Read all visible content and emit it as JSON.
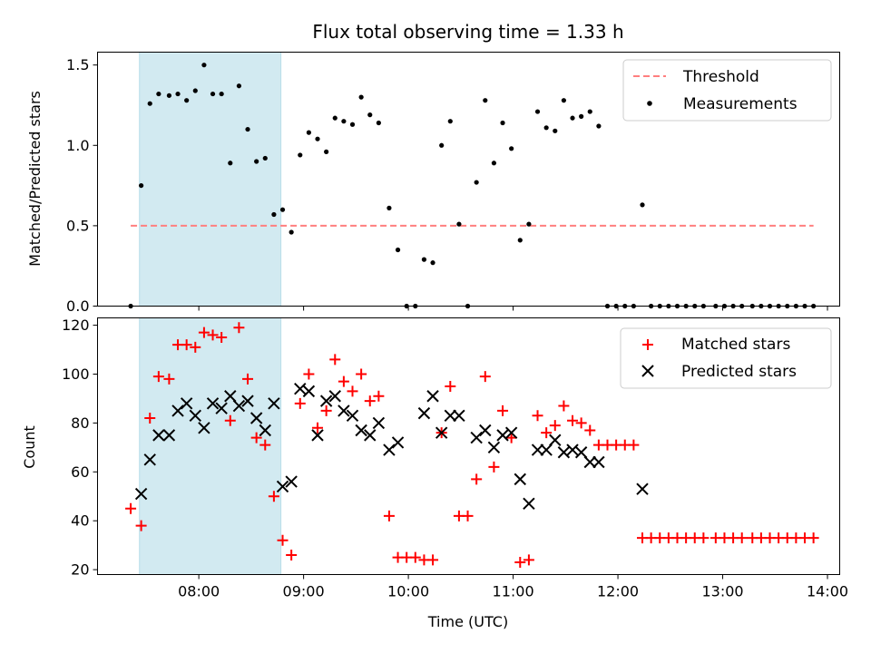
{
  "colors": {
    "shade": "#add8e6",
    "threshold": "#ff7f7f",
    "measurements": "#000000",
    "matched": "#ff0000",
    "predicted": "#000000"
  },
  "chart_data": [
    {
      "type": "scatter",
      "title": "Flux total observing time = 1.33 h",
      "xlabel": "",
      "ylabel": "Matched/Predicted stars",
      "xlim": [
        "07:02",
        "14:07"
      ],
      "ylim": [
        0,
        1.58
      ],
      "yticks": [
        0.0,
        0.5,
        1.0,
        1.5
      ],
      "ytick_labels": [
        "0.0",
        "0.5",
        "1.0",
        "1.5"
      ],
      "shaded_span": [
        "07:26",
        "08:47"
      ],
      "threshold": {
        "name": "Threshold",
        "value": 0.5,
        "x_range": [
          "07:21",
          "13:52"
        ],
        "style": "dashed"
      },
      "legend": {
        "position": "top-right",
        "entries": [
          "Threshold",
          "Measurements"
        ]
      },
      "series": [
        {
          "name": "Measurements",
          "points": [
            [
              "07:21",
              0.0
            ],
            [
              "07:27",
              0.75
            ],
            [
              "07:32",
              1.26
            ],
            [
              "07:37",
              1.32
            ],
            [
              "07:43",
              1.31
            ],
            [
              "07:48",
              1.32
            ],
            [
              "07:53",
              1.28
            ],
            [
              "07:58",
              1.34
            ],
            [
              "08:03",
              1.5
            ],
            [
              "08:08",
              1.32
            ],
            [
              "08:13",
              1.32
            ],
            [
              "08:18",
              0.89
            ],
            [
              "08:23",
              1.37
            ],
            [
              "08:28",
              1.1
            ],
            [
              "08:33",
              0.9
            ],
            [
              "08:38",
              0.92
            ],
            [
              "08:43",
              0.57
            ],
            [
              "08:48",
              0.6
            ],
            [
              "08:53",
              0.46
            ],
            [
              "08:58",
              0.94
            ],
            [
              "09:03",
              1.08
            ],
            [
              "09:08",
              1.04
            ],
            [
              "09:13",
              0.96
            ],
            [
              "09:18",
              1.17
            ],
            [
              "09:23",
              1.15
            ],
            [
              "09:28",
              1.13
            ],
            [
              "09:33",
              1.3
            ],
            [
              "09:38",
              1.19
            ],
            [
              "09:43",
              1.14
            ],
            [
              "09:49",
              0.61
            ],
            [
              "09:54",
              0.35
            ],
            [
              "09:59",
              0.0
            ],
            [
              "10:04",
              0.0
            ],
            [
              "10:09",
              0.29
            ],
            [
              "10:14",
              0.27
            ],
            [
              "10:19",
              1.0
            ],
            [
              "10:24",
              1.15
            ],
            [
              "10:29",
              0.51
            ],
            [
              "10:34",
              0.0
            ],
            [
              "10:39",
              0.77
            ],
            [
              "10:44",
              1.28
            ],
            [
              "10:49",
              0.89
            ],
            [
              "10:54",
              1.14
            ],
            [
              "10:59",
              0.98
            ],
            [
              "11:04",
              0.41
            ],
            [
              "11:09",
              0.51
            ],
            [
              "11:14",
              1.21
            ],
            [
              "11:19",
              1.11
            ],
            [
              "11:24",
              1.09
            ],
            [
              "11:29",
              1.28
            ],
            [
              "11:34",
              1.17
            ],
            [
              "11:39",
              1.18
            ],
            [
              "11:44",
              1.21
            ],
            [
              "11:49",
              1.12
            ],
            [
              "11:54",
              0.0
            ],
            [
              "11:59",
              0.0
            ],
            [
              "12:04",
              0.0
            ],
            [
              "12:09",
              0.0
            ],
            [
              "12:14",
              0.63
            ],
            [
              "12:19",
              0.0
            ],
            [
              "12:24",
              0.0
            ],
            [
              "12:29",
              0.0
            ],
            [
              "12:34",
              0.0
            ],
            [
              "12:39",
              0.0
            ],
            [
              "12:44",
              0.0
            ],
            [
              "12:49",
              0.0
            ],
            [
              "12:56",
              0.0
            ],
            [
              "13:01",
              0.0
            ],
            [
              "13:06",
              0.0
            ],
            [
              "13:11",
              0.0
            ],
            [
              "13:17",
              0.0
            ],
            [
              "13:22",
              0.0
            ],
            [
              "13:27",
              0.0
            ],
            [
              "13:32",
              0.0
            ],
            [
              "13:37",
              0.0
            ],
            [
              "13:42",
              0.0
            ],
            [
              "13:47",
              0.0
            ],
            [
              "13:52",
              0.0
            ]
          ]
        }
      ]
    },
    {
      "type": "scatter",
      "title": "",
      "xlabel": "Time (UTC)",
      "ylabel": "Count",
      "xlim": [
        "07:02",
        "14:07"
      ],
      "ylim": [
        18,
        123
      ],
      "yticks": [
        20,
        40,
        60,
        80,
        100,
        120
      ],
      "ytick_labels": [
        "20",
        "40",
        "60",
        "80",
        "100",
        "120"
      ],
      "xticks": [
        "08:00",
        "09:00",
        "10:00",
        "11:00",
        "12:00",
        "13:00",
        "14:00"
      ],
      "xtick_labels": [
        "08:00",
        "09:00",
        "10:00",
        "11:00",
        "12:00",
        "13:00",
        "14:00"
      ],
      "shaded_span": [
        "07:26",
        "08:47"
      ],
      "legend": {
        "position": "top-right",
        "entries": [
          "Matched stars",
          "Predicted stars"
        ]
      },
      "series": [
        {
          "name": "Matched stars",
          "marker": "+",
          "points": [
            [
              "07:21",
              45
            ],
            [
              "07:27",
              38
            ],
            [
              "07:32",
              82
            ],
            [
              "07:37",
              99
            ],
            [
              "07:43",
              98
            ],
            [
              "07:48",
              112
            ],
            [
              "07:53",
              112
            ],
            [
              "07:58",
              111
            ],
            [
              "08:03",
              117
            ],
            [
              "08:08",
              116
            ],
            [
              "08:13",
              115
            ],
            [
              "08:18",
              81
            ],
            [
              "08:23",
              119
            ],
            [
              "08:28",
              98
            ],
            [
              "08:33",
              74
            ],
            [
              "08:38",
              71
            ],
            [
              "08:43",
              50
            ],
            [
              "08:48",
              32
            ],
            [
              "08:53",
              26
            ],
            [
              "08:58",
              88
            ],
            [
              "09:03",
              100
            ],
            [
              "09:08",
              78
            ],
            [
              "09:13",
              85
            ],
            [
              "09:18",
              106
            ],
            [
              "09:23",
              97
            ],
            [
              "09:28",
              93
            ],
            [
              "09:33",
              100
            ],
            [
              "09:38",
              89
            ],
            [
              "09:43",
              91
            ],
            [
              "09:49",
              42
            ],
            [
              "09:54",
              25
            ],
            [
              "09:59",
              25
            ],
            [
              "10:04",
              25
            ],
            [
              "10:09",
              24
            ],
            [
              "10:14",
              24
            ],
            [
              "10:19",
              76
            ],
            [
              "10:24",
              95
            ],
            [
              "10:29",
              42
            ],
            [
              "10:34",
              42
            ],
            [
              "10:39",
              57
            ],
            [
              "10:44",
              99
            ],
            [
              "10:49",
              62
            ],
            [
              "10:54",
              85
            ],
            [
              "10:59",
              74
            ],
            [
              "11:04",
              23
            ],
            [
              "11:09",
              24
            ],
            [
              "11:14",
              83
            ],
            [
              "11:19",
              76
            ],
            [
              "11:24",
              79
            ],
            [
              "11:29",
              87
            ],
            [
              "11:34",
              81
            ],
            [
              "11:39",
              80
            ],
            [
              "11:44",
              77
            ],
            [
              "11:49",
              71
            ],
            [
              "11:54",
              71
            ],
            [
              "11:59",
              71
            ],
            [
              "12:04",
              71
            ],
            [
              "12:09",
              71
            ],
            [
              "12:14",
              33
            ],
            [
              "12:19",
              33
            ],
            [
              "12:24",
              33
            ],
            [
              "12:29",
              33
            ],
            [
              "12:34",
              33
            ],
            [
              "12:39",
              33
            ],
            [
              "12:44",
              33
            ],
            [
              "12:49",
              33
            ],
            [
              "12:56",
              33
            ],
            [
              "13:01",
              33
            ],
            [
              "13:06",
              33
            ],
            [
              "13:11",
              33
            ],
            [
              "13:17",
              33
            ],
            [
              "13:22",
              33
            ],
            [
              "13:27",
              33
            ],
            [
              "13:32",
              33
            ],
            [
              "13:37",
              33
            ],
            [
              "13:42",
              33
            ],
            [
              "13:47",
              33
            ],
            [
              "13:52",
              33
            ]
          ]
        },
        {
          "name": "Predicted stars",
          "marker": "x",
          "points": [
            [
              "07:27",
              51
            ],
            [
              "07:32",
              65
            ],
            [
              "07:37",
              75
            ],
            [
              "07:43",
              75
            ],
            [
              "07:48",
              85
            ],
            [
              "07:53",
              88
            ],
            [
              "07:58",
              83
            ],
            [
              "08:03",
              78
            ],
            [
              "08:08",
              88
            ],
            [
              "08:13",
              86
            ],
            [
              "08:18",
              91
            ],
            [
              "08:23",
              87
            ],
            [
              "08:28",
              89
            ],
            [
              "08:33",
              82
            ],
            [
              "08:38",
              77
            ],
            [
              "08:43",
              88
            ],
            [
              "08:48",
              54
            ],
            [
              "08:53",
              56
            ],
            [
              "08:58",
              94
            ],
            [
              "09:03",
              93
            ],
            [
              "09:08",
              75
            ],
            [
              "09:13",
              89
            ],
            [
              "09:18",
              91
            ],
            [
              "09:23",
              85
            ],
            [
              "09:28",
              83
            ],
            [
              "09:33",
              77
            ],
            [
              "09:38",
              75
            ],
            [
              "09:43",
              80
            ],
            [
              "09:49",
              69
            ],
            [
              "09:54",
              72
            ],
            [
              "10:09",
              84
            ],
            [
              "10:14",
              91
            ],
            [
              "10:19",
              76
            ],
            [
              "10:24",
              83
            ],
            [
              "10:29",
              83
            ],
            [
              "10:39",
              74
            ],
            [
              "10:44",
              77
            ],
            [
              "10:49",
              70
            ],
            [
              "10:54",
              75
            ],
            [
              "10:59",
              76
            ],
            [
              "11:04",
              57
            ],
            [
              "11:09",
              47
            ],
            [
              "11:14",
              69
            ],
            [
              "11:19",
              69
            ],
            [
              "11:24",
              73
            ],
            [
              "11:29",
              68
            ],
            [
              "11:34",
              69
            ],
            [
              "11:39",
              68
            ],
            [
              "11:44",
              64
            ],
            [
              "11:49",
              64
            ],
            [
              "12:14",
              53
            ]
          ]
        }
      ]
    }
  ]
}
